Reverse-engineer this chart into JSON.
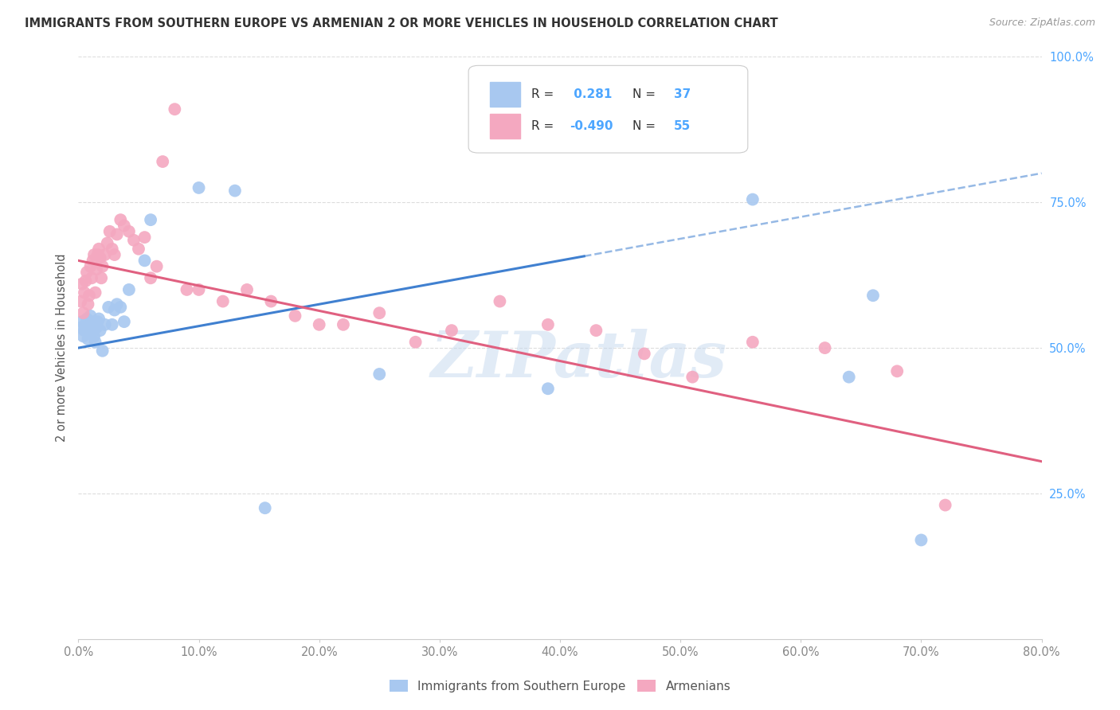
{
  "title": "IMMIGRANTS FROM SOUTHERN EUROPE VS ARMENIAN 2 OR MORE VEHICLES IN HOUSEHOLD CORRELATION CHART",
  "source": "Source: ZipAtlas.com",
  "ylabel": "2 or more Vehicles in Household",
  "right_yticks": [
    "100.0%",
    "75.0%",
    "50.0%",
    "25.0%"
  ],
  "legend_label1": "Immigrants from Southern Europe",
  "legend_label2": "Armenians",
  "R1": "0.281",
  "N1": "37",
  "R2": "-0.490",
  "N2": "55",
  "blue_color": "#A8C8F0",
  "pink_color": "#F4A8C0",
  "blue_line_color": "#4080D0",
  "pink_line_color": "#E06080",
  "watermark": "ZIPatlas",
  "xmin": 0.0,
  "xmax": 0.8,
  "ymin": 0.0,
  "ymax": 1.0,
  "blue_scatter_x": [
    0.002,
    0.003,
    0.004,
    0.005,
    0.006,
    0.007,
    0.008,
    0.009,
    0.01,
    0.011,
    0.012,
    0.013,
    0.014,
    0.015,
    0.016,
    0.017,
    0.018,
    0.02,
    0.022,
    0.025,
    0.028,
    0.03,
    0.032,
    0.035,
    0.038,
    0.042,
    0.055,
    0.06,
    0.1,
    0.13,
    0.155,
    0.25,
    0.39,
    0.56,
    0.64,
    0.66,
    0.7
  ],
  "blue_scatter_y": [
    0.535,
    0.545,
    0.52,
    0.53,
    0.54,
    0.55,
    0.515,
    0.525,
    0.555,
    0.545,
    0.53,
    0.52,
    0.51,
    0.535,
    0.545,
    0.55,
    0.53,
    0.495,
    0.54,
    0.57,
    0.54,
    0.565,
    0.575,
    0.57,
    0.545,
    0.6,
    0.65,
    0.72,
    0.775,
    0.77,
    0.225,
    0.455,
    0.43,
    0.755,
    0.45,
    0.59,
    0.17
  ],
  "pink_scatter_x": [
    0.002,
    0.003,
    0.004,
    0.005,
    0.006,
    0.007,
    0.008,
    0.009,
    0.01,
    0.011,
    0.012,
    0.013,
    0.014,
    0.015,
    0.016,
    0.017,
    0.018,
    0.019,
    0.02,
    0.022,
    0.024,
    0.026,
    0.028,
    0.03,
    0.032,
    0.035,
    0.038,
    0.042,
    0.046,
    0.05,
    0.055,
    0.06,
    0.065,
    0.07,
    0.08,
    0.09,
    0.1,
    0.12,
    0.14,
    0.16,
    0.18,
    0.2,
    0.22,
    0.25,
    0.28,
    0.31,
    0.35,
    0.39,
    0.43,
    0.47,
    0.51,
    0.56,
    0.62,
    0.68,
    0.72
  ],
  "pink_scatter_y": [
    0.58,
    0.61,
    0.56,
    0.595,
    0.615,
    0.63,
    0.575,
    0.59,
    0.64,
    0.62,
    0.65,
    0.66,
    0.595,
    0.635,
    0.66,
    0.67,
    0.655,
    0.62,
    0.64,
    0.66,
    0.68,
    0.7,
    0.67,
    0.66,
    0.695,
    0.72,
    0.71,
    0.7,
    0.685,
    0.67,
    0.69,
    0.62,
    0.64,
    0.82,
    0.91,
    0.6,
    0.6,
    0.58,
    0.6,
    0.58,
    0.555,
    0.54,
    0.54,
    0.56,
    0.51,
    0.53,
    0.58,
    0.54,
    0.53,
    0.49,
    0.45,
    0.51,
    0.5,
    0.46,
    0.23
  ],
  "background_color": "#FFFFFF",
  "grid_color": "#DDDDDD"
}
